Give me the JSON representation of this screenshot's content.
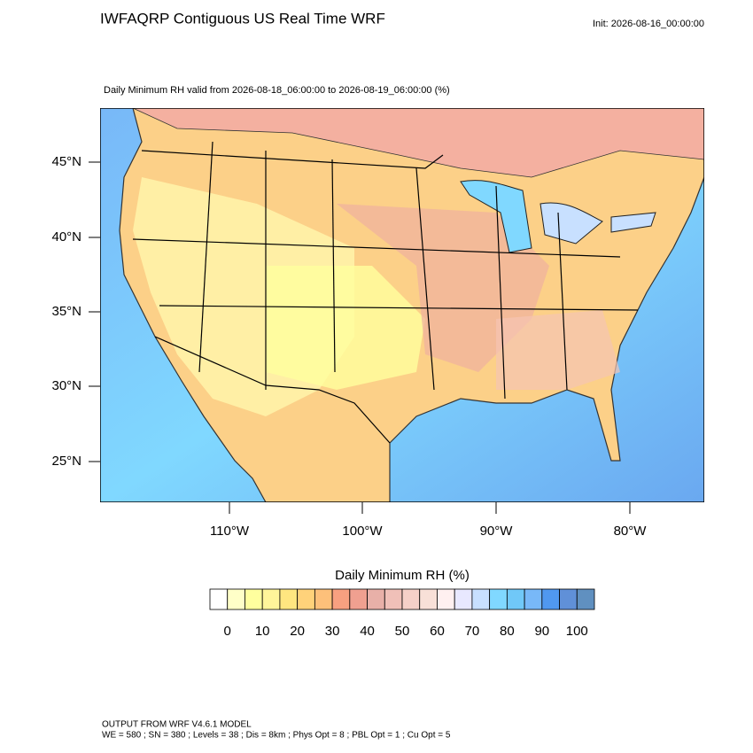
{
  "header": {
    "title": "IWFAQRP Contiguous US Real Time WRF",
    "init": "Init: 2026-08-16_00:00:00"
  },
  "map": {
    "subtitle": "Daily Minimum RH valid from 2026-08-18_06:00:00 to 2026-08-19_06:00:00   (%)",
    "lat_labels": [
      "45°N",
      "40°N",
      "35°N",
      "30°N",
      "25°N"
    ],
    "lon_labels": [
      "110°W",
      "100°W",
      "90°W",
      "80°W"
    ]
  },
  "colorbar": {
    "title": "Daily Minimum RH  (%)",
    "colors": [
      "#ffffff",
      "#ffffc8",
      "#ffff9e",
      "#fff59a",
      "#ffe680",
      "#ffd27a",
      "#fdc07a",
      "#f8a080",
      "#f0a090",
      "#e8b0a8",
      "#f0c0b8",
      "#f5d0c8",
      "#f8e0d8",
      "#fff0f0",
      "#e8e8ff",
      "#c8e0ff",
      "#80d8ff",
      "#70c8f8",
      "#78b8f8",
      "#5098f0",
      "#6090d8",
      "#6090c0"
    ],
    "labels": [
      "0",
      "10",
      "20",
      "30",
      "40",
      "50",
      "60",
      "70",
      "80",
      "90",
      "100"
    ]
  },
  "footer": {
    "line1": "OUTPUT FROM WRF V4.6.1 MODEL",
    "line2": "WE = 580 ; SN = 380 ; Levels = 38 ; Dis = 8km ; Phys Opt = 8 ; PBL Opt = 1 ; Cu Opt = 5"
  }
}
